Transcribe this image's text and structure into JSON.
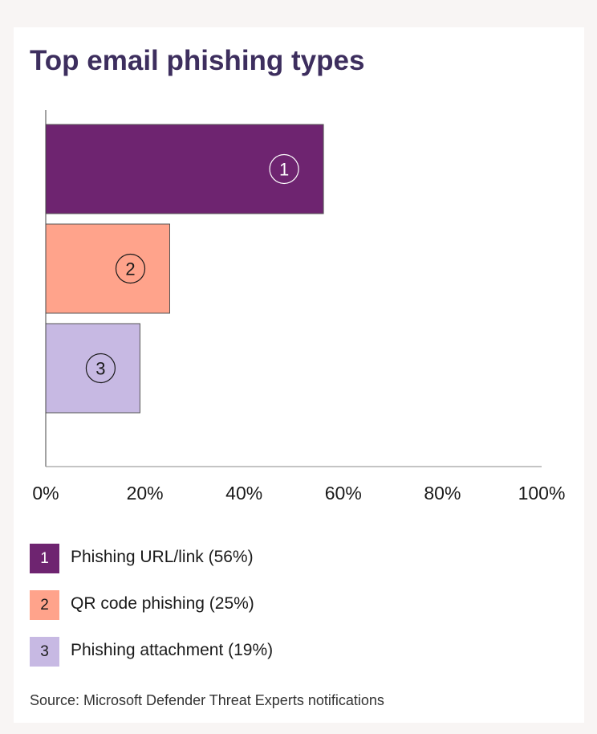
{
  "chart_data": {
    "type": "bar",
    "orientation": "horizontal",
    "title": "Top email phishing types",
    "categories": [
      "1",
      "2",
      "3"
    ],
    "series": [
      {
        "values": [
          56,
          25,
          19
        ]
      }
    ],
    "bar_colors": [
      "#6e2470",
      "#ffa38b",
      "#c7b9e3"
    ],
    "bar_label_colors": [
      "#ffffff",
      "#1a1a1a",
      "#1a1a1a"
    ],
    "xlim": [
      0,
      100
    ],
    "x_ticks": [
      "0%",
      "20%",
      "40%",
      "60%",
      "80%",
      "100%"
    ],
    "grid": false,
    "legend": {
      "placement": "bottom",
      "items": [
        {
          "number": "1",
          "label": "Phishing URL/link (56%)",
          "color": "#6e2470",
          "text_color": "#ffffff"
        },
        {
          "number": "2",
          "label": "QR code phishing (25%)",
          "color": "#ffa38b",
          "text_color": "#1a1a1a"
        },
        {
          "number": "3",
          "label": "Phishing attachment (19%)",
          "color": "#c7b9e3",
          "text_color": "#1a1a1a"
        }
      ]
    },
    "source": "Source: Microsoft Defender Threat Experts notifications"
  }
}
